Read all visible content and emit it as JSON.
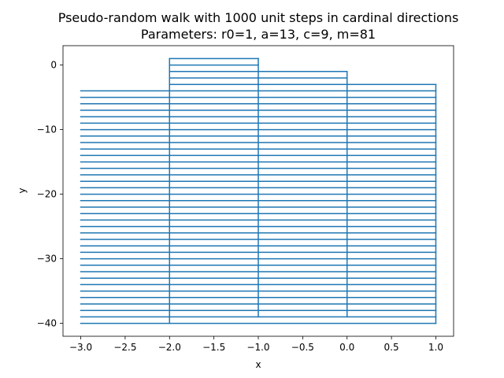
{
  "chart_data": {
    "type": "line",
    "title": "Pseudo-random walk with 1000 unit steps in cardinal directions",
    "subtitle": "Parameters: r0=1, a=13, c=9, m=81",
    "xlabel": "x",
    "ylabel": "y",
    "xlim": [
      -3.2,
      1.2
    ],
    "ylim": [
      -42,
      3
    ],
    "x_ticks": [
      -3.0,
      -2.5,
      -2.0,
      -1.5,
      -1.0,
      -0.5,
      0.0,
      0.5,
      1.0
    ],
    "x_tick_labels": [
      "−3.0",
      "−2.5",
      "−2.0",
      "−1.5",
      "−1.0",
      "−0.5",
      "0.0",
      "0.5",
      "1.0"
    ],
    "y_ticks": [
      0,
      -10,
      -20,
      -30,
      -40
    ],
    "y_tick_labels": [
      "0",
      "−10",
      "−20",
      "−30",
      "−40"
    ],
    "grid": false,
    "legend": false,
    "series_color": "#1f77b4",
    "segments": {
      "horizontal": [
        {
          "y": 1,
          "x": [
            -2,
            -1
          ]
        },
        {
          "y": 0,
          "x": [
            -2,
            -1
          ]
        },
        {
          "y": -1,
          "x": [
            -2,
            0
          ]
        },
        {
          "y": -2,
          "x": [
            -2,
            0
          ]
        },
        {
          "y": -3,
          "x": [
            -2,
            1
          ]
        },
        {
          "y": -4,
          "x": [
            -3,
            1
          ]
        },
        {
          "y": -5,
          "x": [
            -3,
            1
          ]
        },
        {
          "y": -6,
          "x": [
            -3,
            1
          ]
        },
        {
          "y": -7,
          "x": [
            -3,
            1
          ]
        },
        {
          "y": -8,
          "x": [
            -3,
            1
          ]
        },
        {
          "y": -9,
          "x": [
            -3,
            1
          ]
        },
        {
          "y": -10,
          "x": [
            -3,
            1
          ]
        },
        {
          "y": -11,
          "x": [
            -3,
            1
          ]
        },
        {
          "y": -12,
          "x": [
            -3,
            1
          ]
        },
        {
          "y": -13,
          "x": [
            -3,
            1
          ]
        },
        {
          "y": -14,
          "x": [
            -3,
            1
          ]
        },
        {
          "y": -15,
          "x": [
            -3,
            1
          ]
        },
        {
          "y": -16,
          "x": [
            -3,
            1
          ]
        },
        {
          "y": -17,
          "x": [
            -3,
            1
          ]
        },
        {
          "y": -18,
          "x": [
            -3,
            1
          ]
        },
        {
          "y": -19,
          "x": [
            -3,
            1
          ]
        },
        {
          "y": -20,
          "x": [
            -3,
            1
          ]
        },
        {
          "y": -21,
          "x": [
            -3,
            1
          ]
        },
        {
          "y": -22,
          "x": [
            -3,
            1
          ]
        },
        {
          "y": -23,
          "x": [
            -3,
            1
          ]
        },
        {
          "y": -24,
          "x": [
            -3,
            1
          ]
        },
        {
          "y": -25,
          "x": [
            -3,
            1
          ]
        },
        {
          "y": -26,
          "x": [
            -3,
            1
          ]
        },
        {
          "y": -27,
          "x": [
            -3,
            1
          ]
        },
        {
          "y": -28,
          "x": [
            -3,
            1
          ]
        },
        {
          "y": -29,
          "x": [
            -3,
            1
          ]
        },
        {
          "y": -30,
          "x": [
            -3,
            1
          ]
        },
        {
          "y": -31,
          "x": [
            -3,
            1
          ]
        },
        {
          "y": -32,
          "x": [
            -3,
            1
          ]
        },
        {
          "y": -33,
          "x": [
            -3,
            1
          ]
        },
        {
          "y": -34,
          "x": [
            -3,
            1
          ]
        },
        {
          "y": -35,
          "x": [
            -3,
            1
          ]
        },
        {
          "y": -36,
          "x": [
            -3,
            1
          ]
        },
        {
          "y": -37,
          "x": [
            -3,
            1
          ]
        },
        {
          "y": -38,
          "x": [
            -3,
            1
          ]
        },
        {
          "y": -39,
          "x": [
            -3,
            1
          ]
        },
        {
          "y": -40,
          "x": [
            -3,
            1
          ]
        }
      ],
      "vertical": [
        {
          "x": -2,
          "y": [
            -40,
            1
          ]
        },
        {
          "x": -1,
          "y": [
            -39,
            1
          ]
        },
        {
          "x": 0,
          "y": [
            -39,
            -1
          ]
        },
        {
          "x": 1,
          "y": [
            -40,
            -3
          ]
        }
      ]
    }
  }
}
